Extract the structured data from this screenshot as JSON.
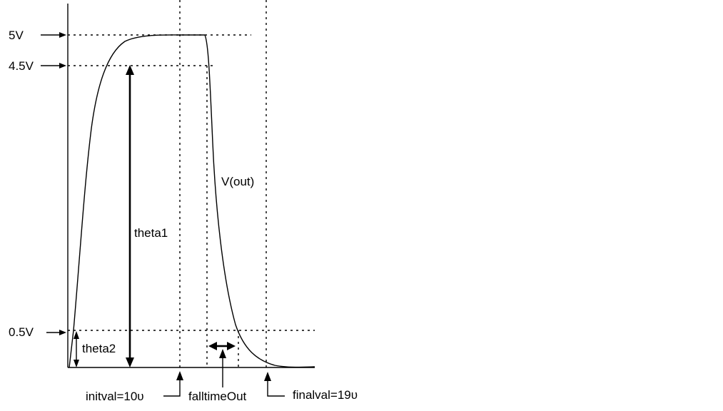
{
  "levels": {
    "high": "5V",
    "upper_threshold": "4.5V",
    "lower_threshold": "0.5V"
  },
  "annotations": {
    "theta1": "theta1",
    "theta2": "theta2",
    "signal": "V(out)",
    "initval": "initval=10υ",
    "falltime": "falltimeOut",
    "finalval": "finalval=19υ"
  }
}
